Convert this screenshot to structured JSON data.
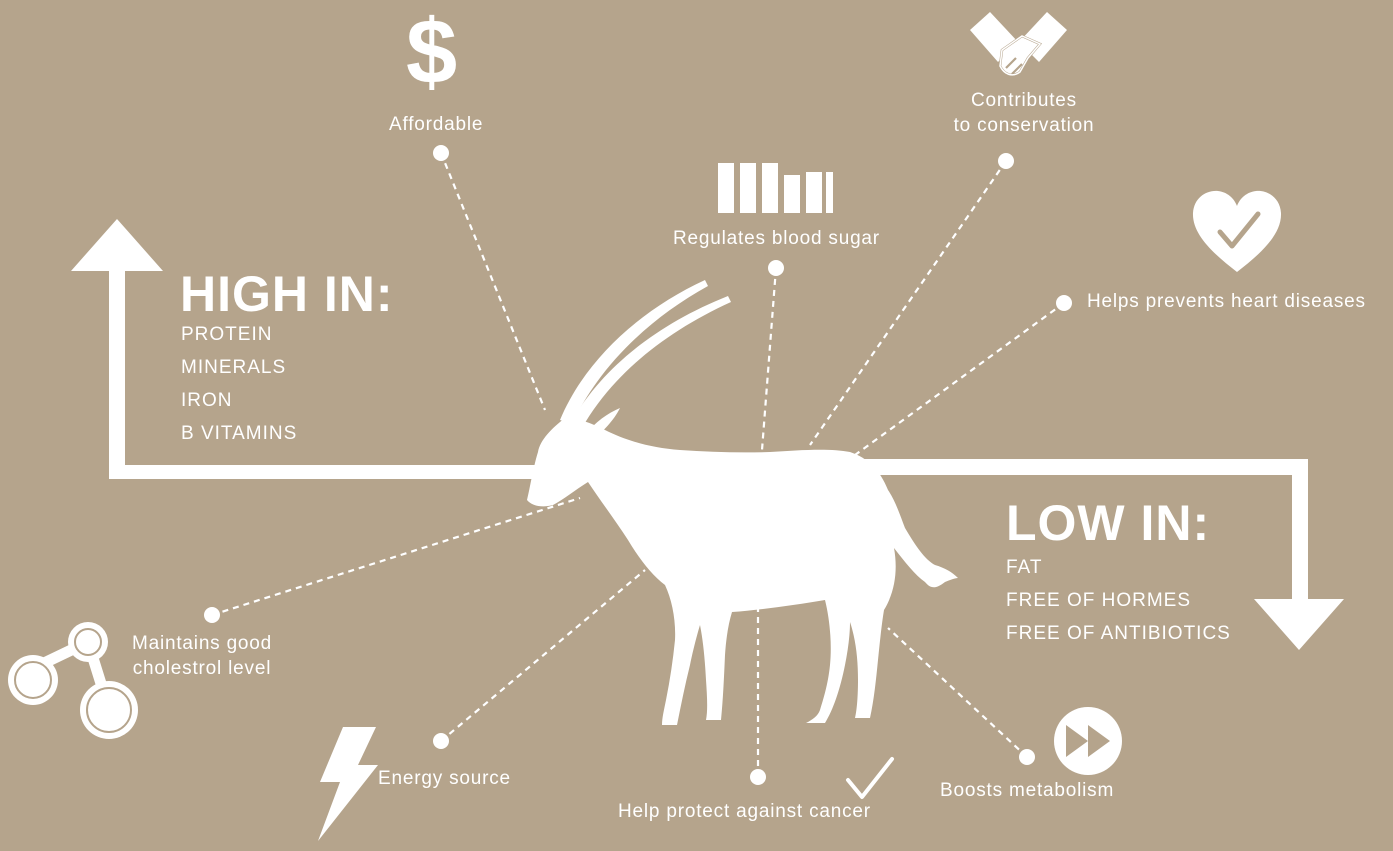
{
  "colors": {
    "background": "#b5a48c",
    "foreground": "#ffffff"
  },
  "high": {
    "heading": "HIGH IN:",
    "items": [
      "PROTEIN",
      "MINERALS",
      "IRON",
      "B VITAMINS"
    ]
  },
  "low": {
    "heading": "LOW IN:",
    "items": [
      "FAT",
      "FREE OF HORMES",
      "FREE OF ANTIBIOTICS"
    ]
  },
  "benefits": {
    "affordable": {
      "label": "Affordable",
      "icon": "dollar-icon",
      "glyph": "$"
    },
    "conservation": {
      "line1": "Contributes",
      "line2": "to conservation",
      "icon": "handshake-icon"
    },
    "blood_sugar": {
      "label": "Regulates blood sugar",
      "icon": "bar-chart-icon"
    },
    "heart": {
      "label": "Helps prevents heart diseases",
      "icon": "heart-check-icon"
    },
    "cholesterol": {
      "line1": "Maintains good",
      "line2": "cholestrol level",
      "icon": "molecule-icon"
    },
    "energy": {
      "label": "Energy source",
      "icon": "lightning-icon"
    },
    "cancer": {
      "label": "Help protect against cancer",
      "icon": "checkmark-icon"
    },
    "metabolism": {
      "label": "Boosts metabolism",
      "icon": "fast-forward-icon"
    }
  },
  "center_figure": "oryx-silhouette"
}
